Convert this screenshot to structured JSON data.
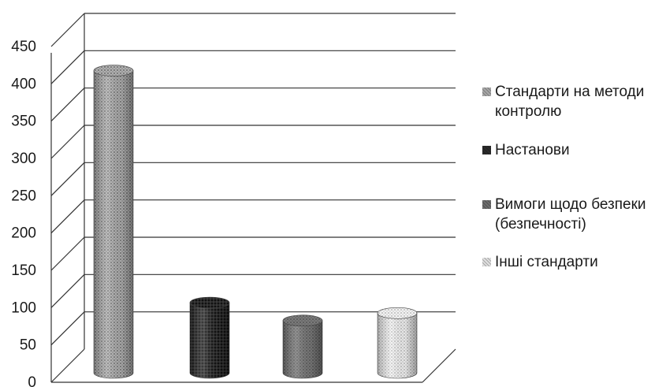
{
  "chart_data": {
    "type": "bar",
    "style": "3d-cylinder",
    "categories": [
      "Стандарти на методи контролю",
      "Настанови",
      "Вимоги щодо безпеки (безпечності)",
      "Інші стандарти"
    ],
    "values": [
      405,
      94,
      70,
      80
    ],
    "series": [
      {
        "name": "Стандарти на методи контролю",
        "value": 405,
        "color": "#a8a8a8"
      },
      {
        "name": "Настанови",
        "value": 94,
        "color": "#2b2b2b"
      },
      {
        "name": "Вимоги щодо безпеки (безпечності)",
        "value": 70,
        "color": "#6e6e6e"
      },
      {
        "name": "Інші стандарти",
        "value": 80,
        "color": "#e0e0e0"
      }
    ],
    "ylim": [
      0,
      450
    ],
    "yticks": [
      "0",
      "50",
      "100",
      "150",
      "200",
      "250",
      "300",
      "350",
      "400",
      "450"
    ],
    "grid": true,
    "legend_position": "right",
    "title": "",
    "xlabel": "",
    "ylabel": ""
  }
}
